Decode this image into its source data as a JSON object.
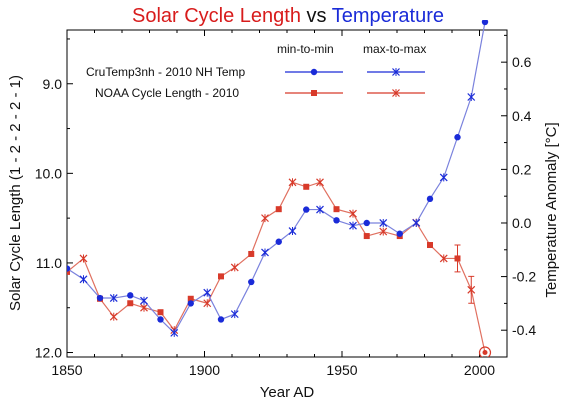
{
  "chart_data": {
    "type": "line",
    "title": {
      "part1": "Solar Cycle Length",
      "part2": " vs ",
      "part3": "Temperature"
    },
    "xlabel": "Year AD",
    "ylabel_left": "Solar Cycle Length  (1 - 2 - 2 - 2 - 1)",
    "ylabel_right": "Temperature Anomaly  [°C]",
    "xlim": [
      1850,
      2010
    ],
    "ylim_left": [
      12.05,
      8.4
    ],
    "ylim_right": [
      -0.5,
      0.72
    ],
    "x_ticks": [
      1850,
      1900,
      1950,
      2000
    ],
    "y_left_ticks": [
      9.0,
      10.0,
      11.0,
      12.0
    ],
    "y_left_tick_labels": [
      "9.0",
      "10.0",
      "11.0",
      "12.0"
    ],
    "y_right_ticks": [
      0.6,
      0.4,
      0.2,
      0.0,
      -0.2,
      -0.4
    ],
    "y_right_tick_labels": [
      "0.6",
      "0.4",
      "0.2",
      "0.0",
      "-0.2",
      "-0.4"
    ],
    "legend": {
      "header_min": "min-to-min",
      "header_max": "max-to-max",
      "entries": [
        "CruTemp3nh - 2010 NH Temp",
        "NOAA Cycle Length - 2010"
      ]
    },
    "colors": {
      "temp": "#1a2bd8",
      "cycle": "#d83a2a",
      "temp_line": "#7a82dd",
      "cycle_line": "#e07060"
    },
    "series": [
      {
        "name": "CruTemp3nh - 2010 NH Temp",
        "axis": "right",
        "color": "#1a2bd8",
        "x": [
          1850,
          1856,
          1862,
          1867,
          1873,
          1878,
          1884,
          1889,
          1895,
          1901,
          1906,
          1911,
          1917,
          1922,
          1927,
          1932,
          1937,
          1942,
          1948,
          1954,
          1959,
          1965,
          1971,
          1977,
          1982,
          1987,
          1992,
          1997,
          2002
        ],
        "y": [
          -0.17,
          -0.21,
          -0.28,
          -0.28,
          -0.27,
          -0.29,
          -0.36,
          -0.41,
          -0.3,
          -0.26,
          -0.36,
          -0.34,
          -0.22,
          -0.11,
          -0.07,
          -0.03,
          0.05,
          0.05,
          0.01,
          -0.01,
          0.0,
          0.0,
          -0.04,
          0.0,
          0.09,
          0.17,
          0.32,
          0.47,
          0.75
        ],
        "markers": [
          "dot",
          "x",
          "dot",
          "x",
          "dot",
          "x",
          "dot",
          "x",
          "dot",
          "x",
          "dot",
          "x",
          "dot",
          "x",
          "dot",
          "x",
          "dot",
          "x",
          "dot",
          "x",
          "dot",
          "x",
          "dot",
          "x",
          "dot",
          "x",
          "dot",
          "x",
          "dot"
        ]
      },
      {
        "name": "NOAA Cycle Length - 2010",
        "axis": "left",
        "color": "#d83a2a",
        "x": [
          1850,
          1856,
          1862,
          1867,
          1873,
          1878,
          1884,
          1889,
          1895,
          1901,
          1906,
          1911,
          1917,
          1922,
          1927,
          1932,
          1937,
          1942,
          1948,
          1954,
          1959,
          1965,
          1971,
          1977,
          1982,
          1987,
          1992,
          1997,
          2002
        ],
        "y": [
          11.1,
          10.95,
          11.4,
          11.6,
          11.45,
          11.5,
          11.55,
          11.75,
          11.4,
          11.45,
          11.15,
          11.05,
          10.9,
          10.5,
          10.4,
          10.1,
          10.15,
          10.1,
          10.4,
          10.45,
          10.7,
          10.65,
          10.7,
          10.55,
          10.8,
          10.95,
          10.95,
          11.3,
          12.0
        ],
        "markers": [
          "sq",
          "x",
          "sq",
          "x",
          "sq",
          "x",
          "sq",
          "x",
          "sq",
          "x",
          "sq",
          "x",
          "sq",
          "x",
          "sq",
          "x",
          "sq",
          "x",
          "sq",
          "x",
          "sq",
          "x",
          "sq",
          "x",
          "sq",
          "x",
          "sq",
          "x",
          "circle"
        ]
      }
    ]
  }
}
